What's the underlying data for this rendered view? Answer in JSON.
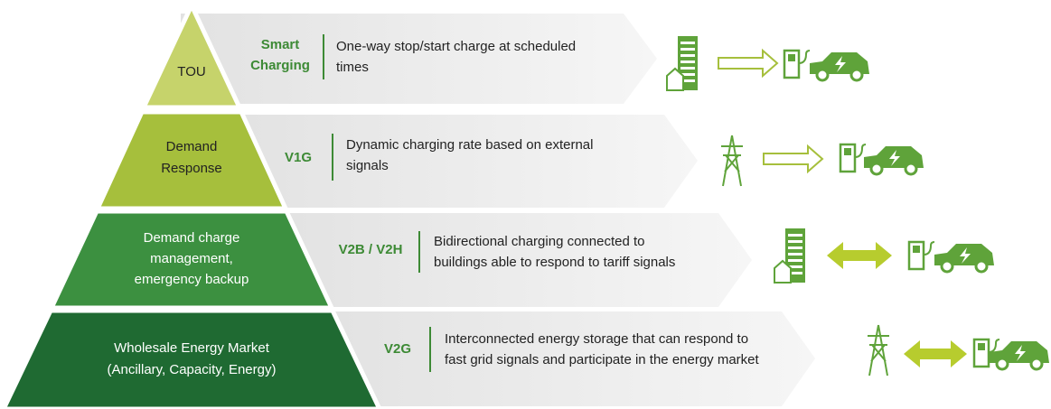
{
  "tiers": [
    {
      "label": [
        "TOU"
      ],
      "tag": [
        "Smart",
        "Charging"
      ],
      "description": [
        "One-way stop/start charge at scheduled",
        "times"
      ]
    },
    {
      "label": [
        "Demand",
        "Response"
      ],
      "tag": [
        "V1G"
      ],
      "description": [
        "Dynamic charging rate based on external",
        "signals"
      ]
    },
    {
      "label": [
        "Demand charge",
        "management,",
        "emergency backup"
      ],
      "tag": [
        "V2B / V2H"
      ],
      "description": [
        "Bidirectional charging connected to",
        "buildings able to respond to tariff signals"
      ]
    },
    {
      "label": [
        "Wholesale Energy Market",
        "(Ancillary, Capacity, Energy)"
      ],
      "tag": [
        "V2G"
      ],
      "description": [
        "Interconnected energy storage that can respond to",
        "fast grid signals and participate in the energy market"
      ]
    }
  ]
}
